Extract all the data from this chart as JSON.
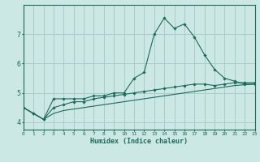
{
  "xlabel": "Humidex (Indice chaleur)",
  "bg_color": "#cce8e4",
  "grid_color": "#aacccc",
  "line_color": "#1a6b5a",
  "x_values": [
    0,
    1,
    2,
    3,
    4,
    5,
    6,
    7,
    8,
    9,
    10,
    11,
    12,
    13,
    14,
    15,
    16,
    17,
    18,
    19,
    20,
    21,
    22,
    23
  ],
  "series1": [
    4.5,
    4.3,
    4.1,
    4.8,
    4.8,
    4.8,
    4.8,
    4.9,
    4.9,
    5.0,
    5.0,
    5.5,
    5.7,
    7.0,
    7.55,
    7.2,
    7.35,
    6.9,
    6.3,
    5.8,
    5.5,
    5.4,
    5.3,
    5.3
  ],
  "series2": [
    4.5,
    4.3,
    4.1,
    4.5,
    4.6,
    4.7,
    4.7,
    4.8,
    4.85,
    4.9,
    4.95,
    5.0,
    5.05,
    5.1,
    5.15,
    5.2,
    5.25,
    5.3,
    5.3,
    5.25,
    5.3,
    5.35,
    5.35,
    5.35
  ],
  "series3": [
    4.5,
    4.3,
    4.1,
    4.3,
    4.4,
    4.45,
    4.5,
    4.55,
    4.6,
    4.65,
    4.7,
    4.75,
    4.8,
    4.85,
    4.9,
    4.95,
    5.0,
    5.05,
    5.1,
    5.15,
    5.2,
    5.25,
    5.28,
    5.3
  ],
  "ylim": [
    3.75,
    8.0
  ],
  "yticks": [
    4,
    5,
    6,
    7
  ],
  "xlim": [
    0,
    23
  ]
}
